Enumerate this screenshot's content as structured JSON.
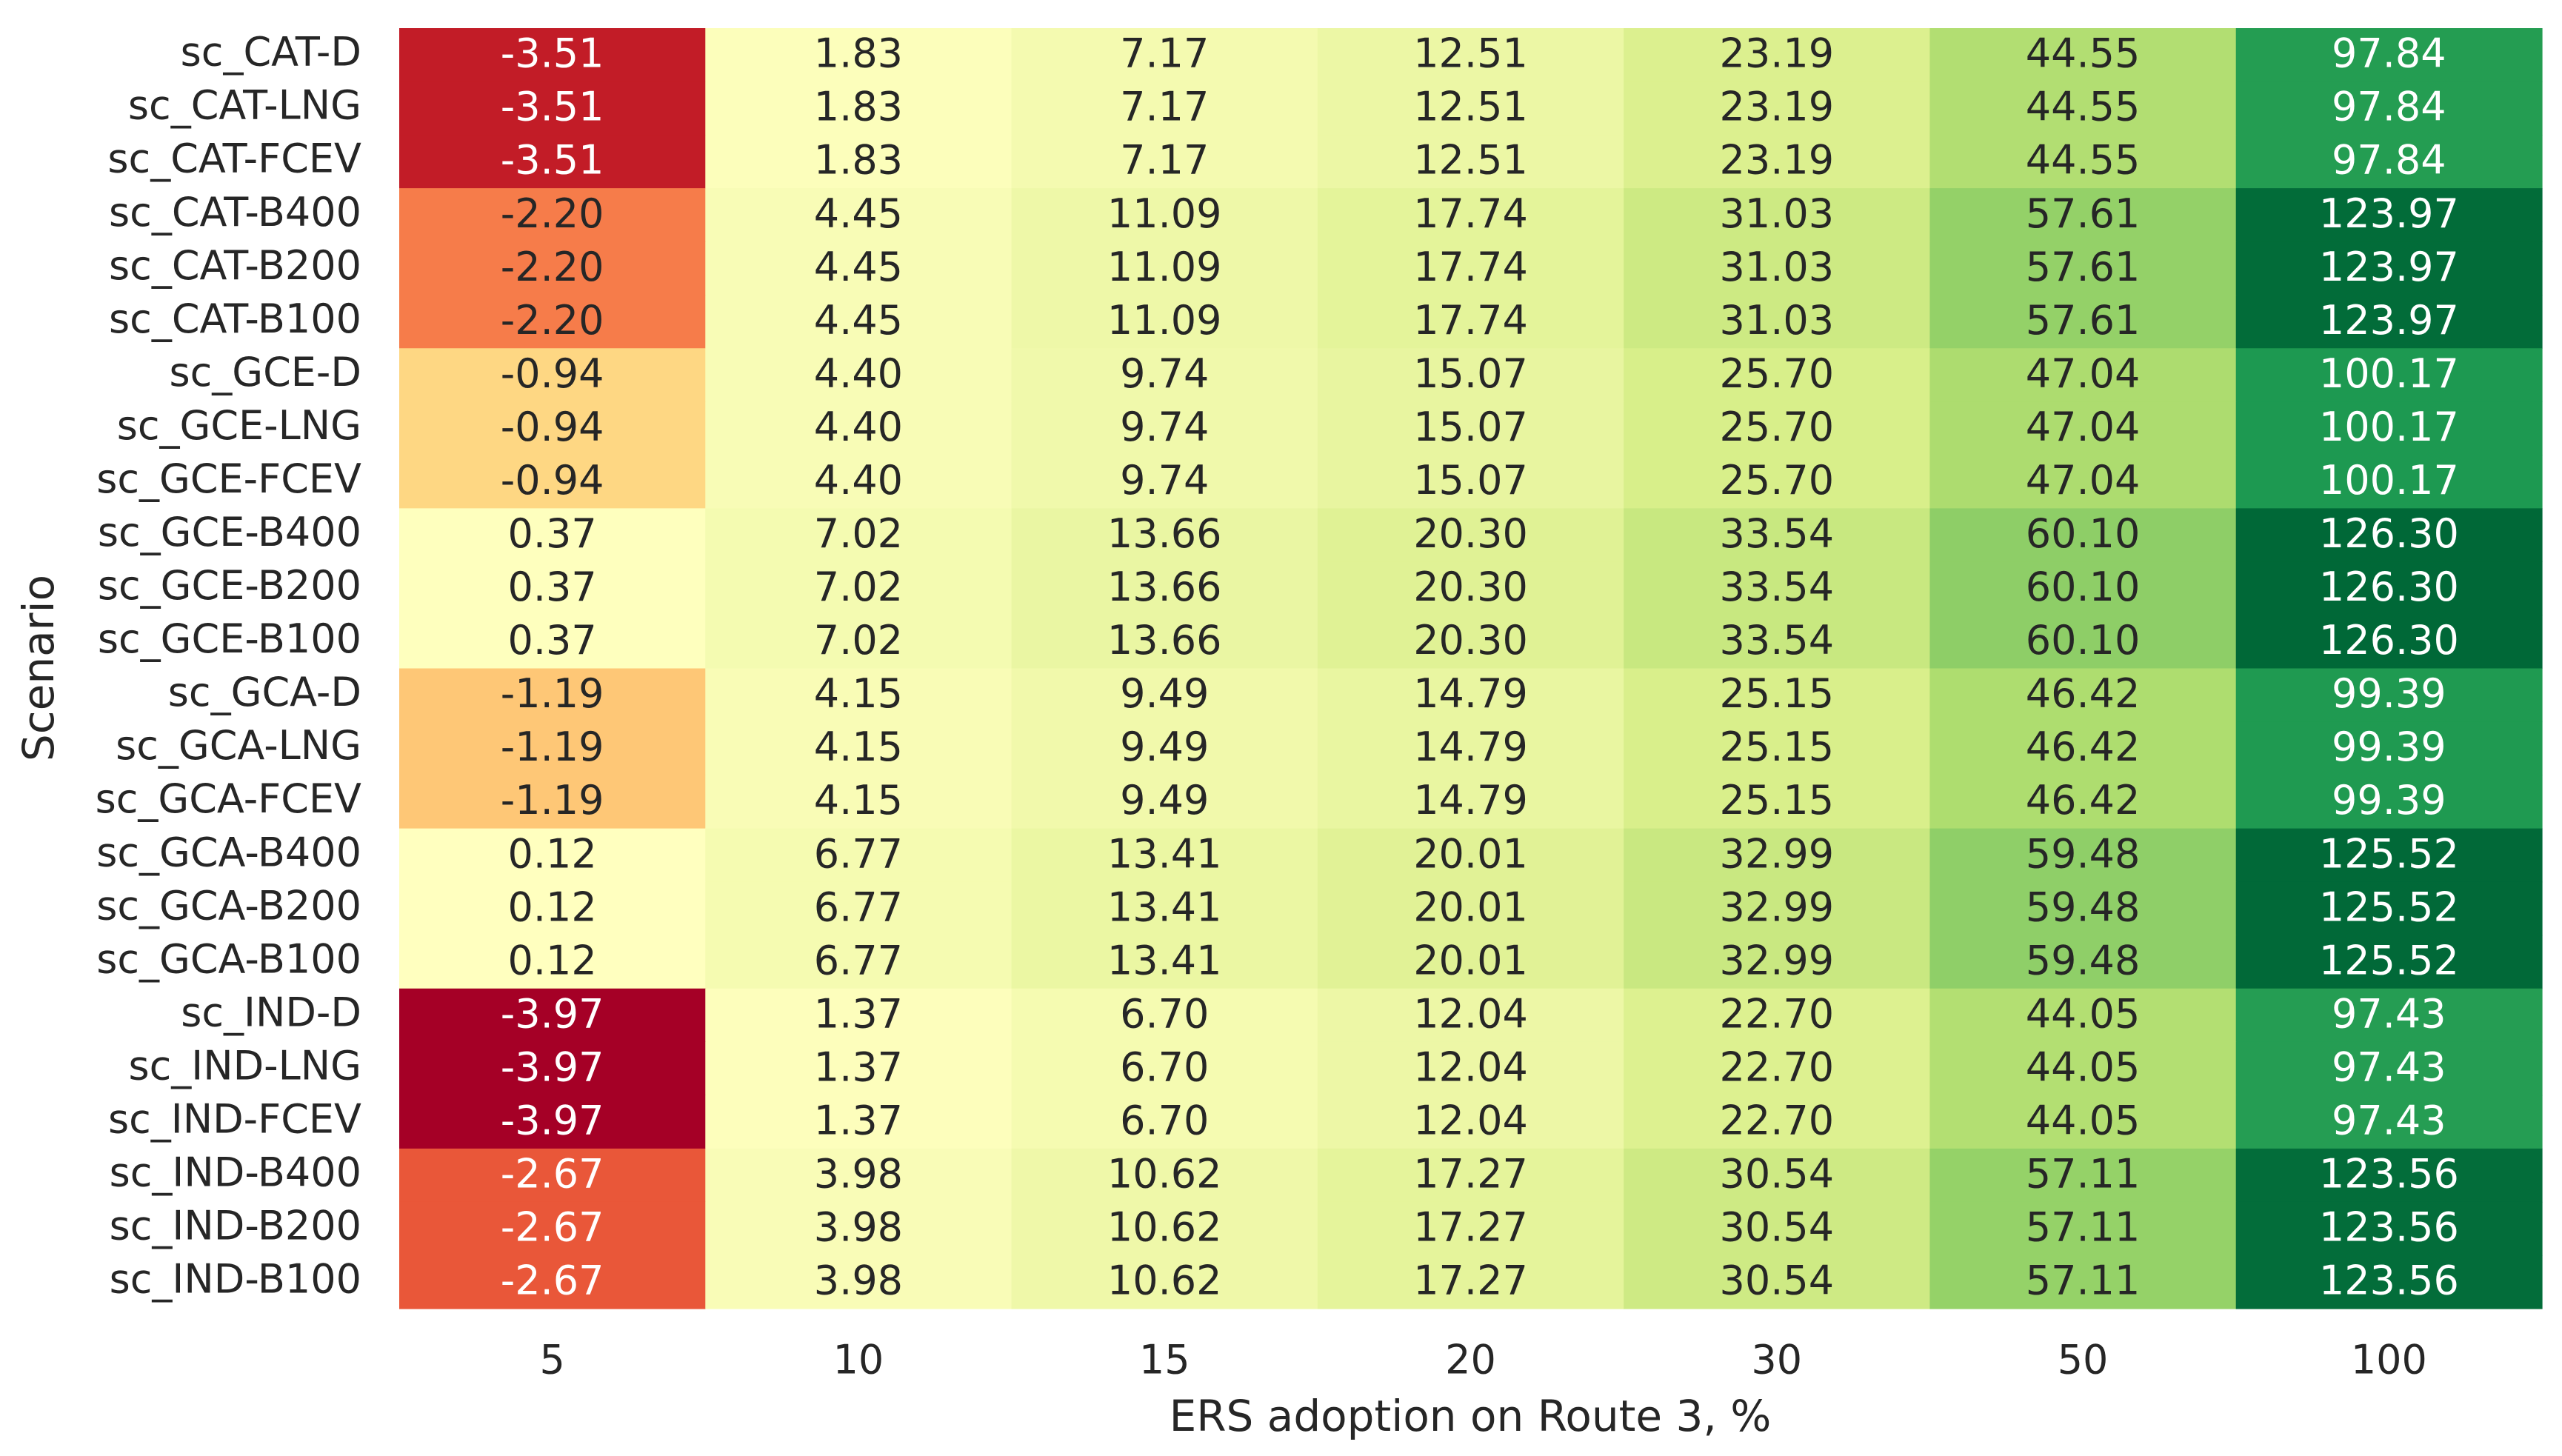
{
  "chart_data": {
    "type": "heatmap",
    "xlabel": "ERS adoption on Route 3, %",
    "ylabel": "Scenario",
    "colormap": "RdYlGn",
    "center": 0,
    "x_categories": [
      "5",
      "10",
      "15",
      "20",
      "30",
      "50",
      "100"
    ],
    "y_categories": [
      "sc_CAT-D",
      "sc_CAT-LNG",
      "sc_CAT-FCEV",
      "sc_CAT-B400",
      "sc_CAT-B200",
      "sc_CAT-B100",
      "sc_GCE-D",
      "sc_GCE-LNG",
      "sc_GCE-FCEV",
      "sc_GCE-B400",
      "sc_GCE-B200",
      "sc_GCE-B100",
      "sc_GCA-D",
      "sc_GCA-LNG",
      "sc_GCA-FCEV",
      "sc_GCA-B400",
      "sc_GCA-B200",
      "sc_GCA-B100",
      "sc_IND-D",
      "sc_IND-LNG",
      "sc_IND-FCEV",
      "sc_IND-B400",
      "sc_IND-B200",
      "sc_IND-B100"
    ],
    "values": [
      [
        -3.51,
        1.83,
        7.17,
        12.51,
        23.19,
        44.55,
        97.84
      ],
      [
        -3.51,
        1.83,
        7.17,
        12.51,
        23.19,
        44.55,
        97.84
      ],
      [
        -3.51,
        1.83,
        7.17,
        12.51,
        23.19,
        44.55,
        97.84
      ],
      [
        -2.2,
        4.45,
        11.09,
        17.74,
        31.03,
        57.61,
        123.97
      ],
      [
        -2.2,
        4.45,
        11.09,
        17.74,
        31.03,
        57.61,
        123.97
      ],
      [
        -2.2,
        4.45,
        11.09,
        17.74,
        31.03,
        57.61,
        123.97
      ],
      [
        -0.94,
        4.4,
        9.74,
        15.07,
        25.7,
        47.04,
        100.17
      ],
      [
        -0.94,
        4.4,
        9.74,
        15.07,
        25.7,
        47.04,
        100.17
      ],
      [
        -0.94,
        4.4,
        9.74,
        15.07,
        25.7,
        47.04,
        100.17
      ],
      [
        0.37,
        7.02,
        13.66,
        20.3,
        33.54,
        60.1,
        126.3
      ],
      [
        0.37,
        7.02,
        13.66,
        20.3,
        33.54,
        60.1,
        126.3
      ],
      [
        0.37,
        7.02,
        13.66,
        20.3,
        33.54,
        60.1,
        126.3
      ],
      [
        -1.19,
        4.15,
        9.49,
        14.79,
        25.15,
        46.42,
        99.39
      ],
      [
        -1.19,
        4.15,
        9.49,
        14.79,
        25.15,
        46.42,
        99.39
      ],
      [
        -1.19,
        4.15,
        9.49,
        14.79,
        25.15,
        46.42,
        99.39
      ],
      [
        0.12,
        6.77,
        13.41,
        20.01,
        32.99,
        59.48,
        125.52
      ],
      [
        0.12,
        6.77,
        13.41,
        20.01,
        32.99,
        59.48,
        125.52
      ],
      [
        0.12,
        6.77,
        13.41,
        20.01,
        32.99,
        59.48,
        125.52
      ],
      [
        -3.97,
        1.37,
        6.7,
        12.04,
        22.7,
        44.05,
        97.43
      ],
      [
        -3.97,
        1.37,
        6.7,
        12.04,
        22.7,
        44.05,
        97.43
      ],
      [
        -3.97,
        1.37,
        6.7,
        12.04,
        22.7,
        44.05,
        97.43
      ],
      [
        -2.67,
        3.98,
        10.62,
        17.27,
        30.54,
        57.11,
        123.56
      ],
      [
        -2.67,
        3.98,
        10.62,
        17.27,
        30.54,
        57.11,
        123.56
      ],
      [
        -2.67,
        3.98,
        10.62,
        17.27,
        30.54,
        57.11,
        123.56
      ]
    ],
    "value_labels": [
      [
        "-3.51",
        "1.83",
        "7.17",
        "12.51",
        "23.19",
        "44.55",
        "97.84"
      ],
      [
        "-3.51",
        "1.83",
        "7.17",
        "12.51",
        "23.19",
        "44.55",
        "97.84"
      ],
      [
        "-3.51",
        "1.83",
        "7.17",
        "12.51",
        "23.19",
        "44.55",
        "97.84"
      ],
      [
        "-2.20",
        "4.45",
        "11.09",
        "17.74",
        "31.03",
        "57.61",
        "123.97"
      ],
      [
        "-2.20",
        "4.45",
        "11.09",
        "17.74",
        "31.03",
        "57.61",
        "123.97"
      ],
      [
        "-2.20",
        "4.45",
        "11.09",
        "17.74",
        "31.03",
        "57.61",
        "123.97"
      ],
      [
        "-0.94",
        "4.40",
        "9.74",
        "15.07",
        "25.70",
        "47.04",
        "100.17"
      ],
      [
        "-0.94",
        "4.40",
        "9.74",
        "15.07",
        "25.70",
        "47.04",
        "100.17"
      ],
      [
        "-0.94",
        "4.40",
        "9.74",
        "15.07",
        "25.70",
        "47.04",
        "100.17"
      ],
      [
        "0.37",
        "7.02",
        "13.66",
        "20.30",
        "33.54",
        "60.10",
        "126.30"
      ],
      [
        "0.37",
        "7.02",
        "13.66",
        "20.30",
        "33.54",
        "60.10",
        "126.30"
      ],
      [
        "0.37",
        "7.02",
        "13.66",
        "20.30",
        "33.54",
        "60.10",
        "126.30"
      ],
      [
        "-1.19",
        "4.15",
        "9.49",
        "14.79",
        "25.15",
        "46.42",
        "99.39"
      ],
      [
        "-1.19",
        "4.15",
        "9.49",
        "14.79",
        "25.15",
        "46.42",
        "99.39"
      ],
      [
        "-1.19",
        "4.15",
        "9.49",
        "14.79",
        "25.15",
        "46.42",
        "99.39"
      ],
      [
        "0.12",
        "6.77",
        "13.41",
        "20.01",
        "32.99",
        "59.48",
        "125.52"
      ],
      [
        "0.12",
        "6.77",
        "13.41",
        "20.01",
        "32.99",
        "59.48",
        "125.52"
      ],
      [
        "0.12",
        "6.77",
        "13.41",
        "20.01",
        "32.99",
        "59.48",
        "125.52"
      ],
      [
        "-3.97",
        "1.37",
        "6.70",
        "12.04",
        "22.70",
        "44.05",
        "97.43"
      ],
      [
        "-3.97",
        "1.37",
        "6.70",
        "12.04",
        "22.70",
        "44.05",
        "97.43"
      ],
      [
        "-3.97",
        "1.37",
        "6.70",
        "12.04",
        "22.70",
        "44.05",
        "97.43"
      ],
      [
        "-2.67",
        "3.98",
        "10.62",
        "17.27",
        "30.54",
        "57.11",
        "123.56"
      ],
      [
        "-2.67",
        "3.98",
        "10.62",
        "17.27",
        "30.54",
        "57.11",
        "123.56"
      ],
      [
        "-2.67",
        "3.98",
        "10.62",
        "17.27",
        "30.54",
        "57.11",
        "123.56"
      ]
    ]
  }
}
